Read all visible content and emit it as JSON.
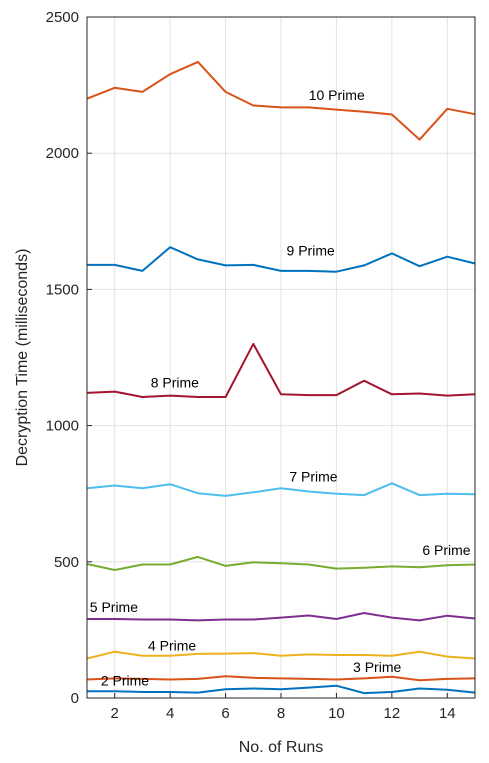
{
  "chart_data": {
    "type": "line",
    "title": "",
    "xlabel": "No. of Runs",
    "ylabel": "Decryption Time (milliseconds)",
    "xlim": [
      1,
      15
    ],
    "ylim": [
      0,
      2500
    ],
    "grid": true,
    "x": [
      1,
      2,
      3,
      4,
      5,
      6,
      7,
      8,
      9,
      10,
      11,
      12,
      13,
      14,
      15
    ],
    "xticks": [
      2,
      4,
      6,
      8,
      10,
      12,
      14
    ],
    "yticks": [
      0,
      500,
      1000,
      1500,
      2000,
      2500
    ],
    "series": [
      {
        "name": "10 Prime",
        "color": "#d95319",
        "label_at": [
          9,
          2195
        ],
        "values": [
          2200,
          2240,
          2225,
          2290,
          2335,
          2225,
          2175,
          2168,
          2168,
          2160,
          2152,
          2142,
          2050,
          2163,
          2143
        ]
      },
      {
        "name": "9 Prime",
        "color": "#0072bd",
        "label_at": [
          8.2,
          1625
        ],
        "values": [
          1590,
          1590,
          1568,
          1655,
          1610,
          1588,
          1590,
          1568,
          1568,
          1565,
          1588,
          1632,
          1585,
          1620,
          1595
        ]
      },
      {
        "name": "8 Prime",
        "color": "#a2142f",
        "label_at": [
          3.3,
          1140
        ],
        "values": [
          1120,
          1125,
          1105,
          1110,
          1105,
          1105,
          1300,
          1115,
          1112,
          1112,
          1165,
          1115,
          1118,
          1110,
          1115
        ]
      },
      {
        "name": "7 Prime",
        "color": "#4dbeee",
        "label_at": [
          8.3,
          795
        ],
        "values": [
          770,
          780,
          770,
          785,
          752,
          742,
          755,
          770,
          758,
          750,
          745,
          788,
          745,
          750,
          748
        ]
      },
      {
        "name": "6 Prime",
        "color": "#77ac30",
        "label_at": [
          13.1,
          525
        ],
        "values": [
          492,
          470,
          490,
          490,
          518,
          485,
          498,
          495,
          490,
          475,
          478,
          483,
          480,
          487,
          490
        ]
      },
      {
        "name": "5 Prime",
        "color": "#7e2f8e",
        "label_at": [
          1.1,
          315
        ],
        "values": [
          290,
          290,
          288,
          288,
          285,
          288,
          288,
          295,
          303,
          290,
          312,
          295,
          285,
          302,
          292
        ]
      },
      {
        "name": "4 Prime",
        "color": "#edb120",
        "label_at": [
          3.2,
          175
        ],
        "values": [
          145,
          170,
          155,
          155,
          162,
          163,
          165,
          155,
          160,
          158,
          158,
          155,
          170,
          152,
          145
        ]
      },
      {
        "name": "3 Prime",
        "color": "#d95319",
        "label_at": [
          10.6,
          95
        ],
        "values": [
          68,
          72,
          70,
          68,
          70,
          80,
          74,
          72,
          70,
          68,
          72,
          78,
          65,
          70,
          72
        ]
      },
      {
        "name": "2 Prime",
        "color": "#0072bd",
        "label_at": [
          1.5,
          45
        ],
        "values": [
          25,
          25,
          22,
          22,
          20,
          32,
          35,
          32,
          38,
          45,
          18,
          22,
          35,
          30,
          20
        ]
      }
    ]
  }
}
